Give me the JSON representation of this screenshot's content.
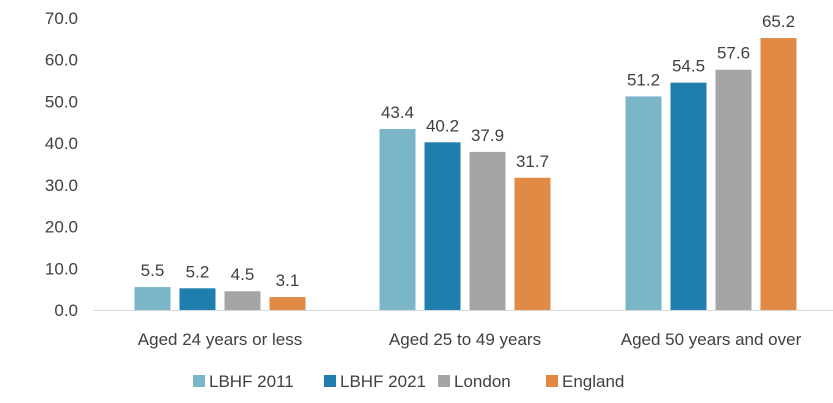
{
  "chart_data": {
    "type": "bar",
    "title": "",
    "xlabel": "",
    "ylabel": "",
    "ylim": [
      0,
      70
    ],
    "yticks": [
      0,
      10,
      20,
      30,
      40,
      50,
      60,
      70
    ],
    "ytick_labels": [
      "0.0",
      "10.0",
      "20.0",
      "30.0",
      "40.0",
      "50.0",
      "60.0",
      "70.0"
    ],
    "grid": false,
    "legend_position": "bottom",
    "categories": [
      "Aged 24 years or less",
      "Aged 25 to 49 years",
      "Aged 50 years and over"
    ],
    "series": [
      {
        "name": "LBHF 2011",
        "color": "#7ab5c8",
        "values": [
          5.5,
          43.4,
          51.2
        ],
        "labels": [
          "5.5",
          "43.4",
          "51.2"
        ]
      },
      {
        "name": "LBHF 2021",
        "color": "#1f7ead",
        "values": [
          5.2,
          40.2,
          54.5
        ],
        "labels": [
          "5.2",
          "40.2",
          "54.5"
        ]
      },
      {
        "name": "London",
        "color": "#a5a5a5",
        "values": [
          4.5,
          37.9,
          57.6
        ],
        "labels": [
          "4.5",
          "37.9",
          "57.6"
        ]
      },
      {
        "name": "England",
        "color": "#e08a45",
        "values": [
          3.1,
          31.7,
          65.2
        ],
        "labels": [
          "3.1",
          "31.7",
          "65.2"
        ]
      }
    ]
  }
}
